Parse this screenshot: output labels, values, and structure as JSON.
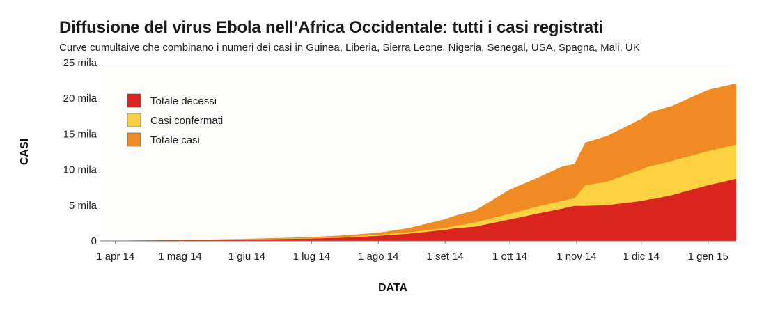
{
  "chart_data": {
    "type": "area",
    "title": "Diffusione del virus Ebola nell’Africa Occidentale: tutti i casi registrati",
    "subtitle": "Curve cumultaive che combinano i numeri dei casi in Guinea, Liberia, Sierra Leone, Nigeria, Senegal, USA, Spagna, Mali, UK",
    "xlabel": "DATA",
    "ylabel": "CASI",
    "x_ticks": [
      "1 apr 14",
      "1 mag 14",
      "1 giu 14",
      "1 lug 14",
      "1 ago 14",
      "1 set 14",
      "1 ott 14",
      "1 nov 14",
      "1 dic 14",
      "1 gen 15"
    ],
    "y_ticks": [
      "0",
      "5 mila",
      "10 mila",
      "15 mila",
      "20 mila",
      "25 mila"
    ],
    "ylim": [
      0,
      25000
    ],
    "xlim": [
      "2014-03-25",
      "2015-01-14"
    ],
    "grid": false,
    "legend_position": "top-left",
    "x": [
      "2014-03-25",
      "2014-04-15",
      "2014-05-15",
      "2014-06-15",
      "2014-07-01",
      "2014-07-15",
      "2014-08-01",
      "2014-08-15",
      "2014-09-01",
      "2014-09-05",
      "2014-09-15",
      "2014-10-01",
      "2014-10-15",
      "2014-10-25",
      "2014-10-31",
      "2014-11-05",
      "2014-11-15",
      "2014-12-01",
      "2014-12-05",
      "2014-12-07",
      "2014-12-15",
      "2015-01-01",
      "2015-01-14"
    ],
    "series": [
      {
        "name": "Totale decessi",
        "color": "#d9241f",
        "values": [
          0,
          80,
          150,
          250,
          330,
          450,
          700,
          1000,
          1550,
          1750,
          2000,
          3000,
          3900,
          4500,
          4900,
          4900,
          5000,
          5600,
          5850,
          5900,
          6400,
          7800,
          8700
        ]
      },
      {
        "name": "Casi confermati",
        "color": "#fcd142",
        "values": [
          0,
          90,
          170,
          300,
          400,
          550,
          850,
          1200,
          1800,
          2050,
          2600,
          3800,
          4900,
          5600,
          6000,
          7800,
          8300,
          10000,
          10500,
          10600,
          11200,
          12600,
          13500
        ]
      },
      {
        "name": "Totale casi",
        "color": "#f08a22",
        "values": [
          0,
          100,
          200,
          400,
          550,
          750,
          1150,
          1800,
          3050,
          3500,
          4300,
          7200,
          9000,
          10400,
          10800,
          13800,
          14700,
          17100,
          18000,
          18200,
          18900,
          21200,
          22100
        ]
      }
    ]
  }
}
